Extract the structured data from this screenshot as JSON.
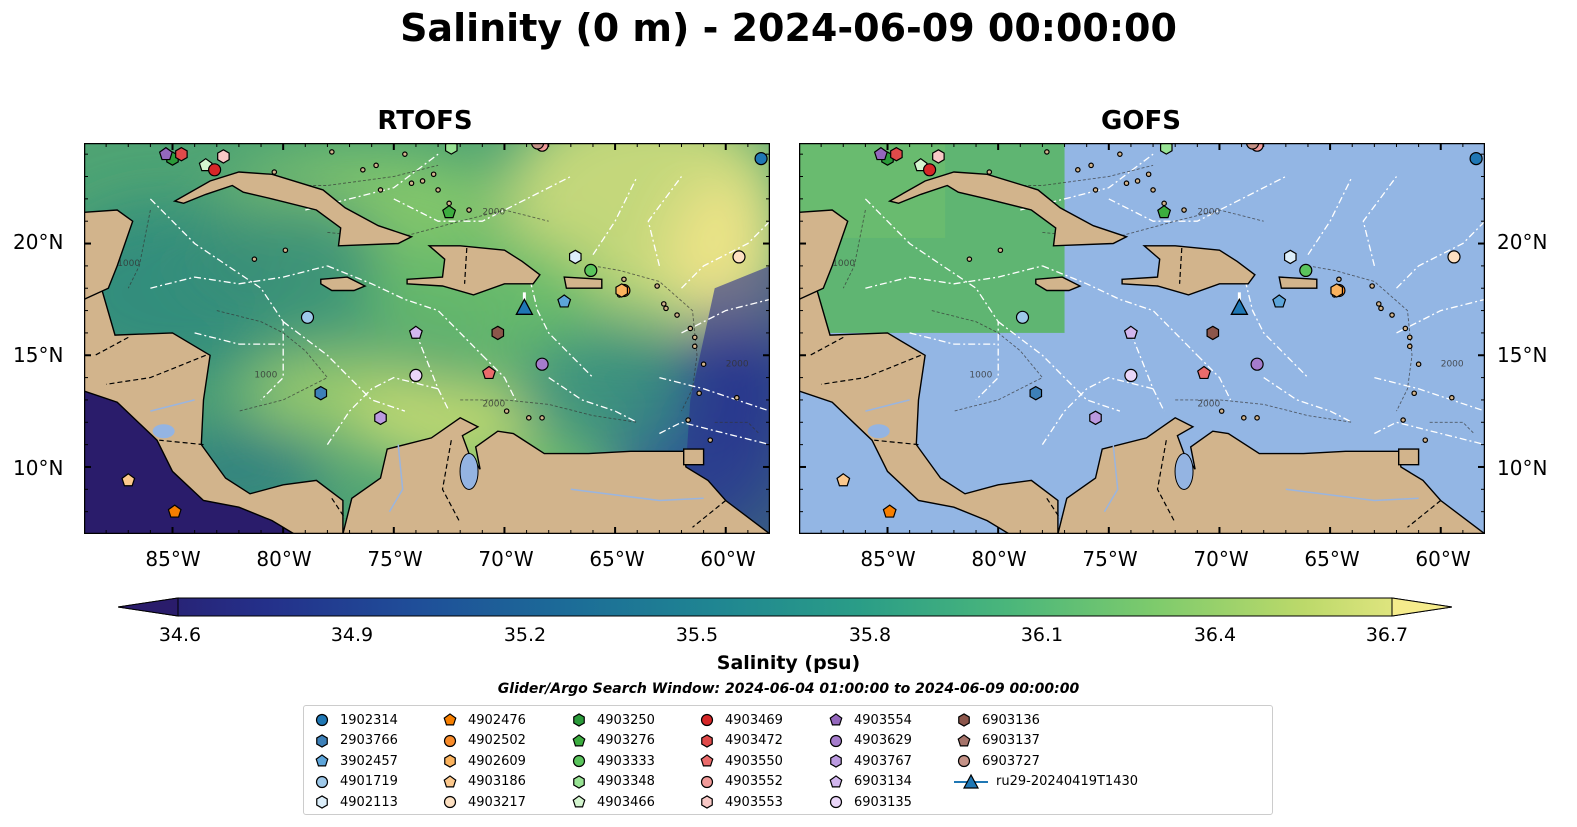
{
  "title": "Salinity (0 m) - 2024-06-09 00:00:00",
  "panels": [
    {
      "title": "RTOFS"
    },
    {
      "title": "GOFS"
    }
  ],
  "lat_labels": [
    "20°N",
    "15°N",
    "10°N"
  ],
  "lon_labels": [
    "85°W",
    "80°W",
    "75°W",
    "70°W",
    "65°W",
    "60°W"
  ],
  "map_extent": {
    "lon_min": -89,
    "lon_max": -58,
    "lat_min": 7,
    "lat_max": 24.5
  },
  "colorbar": {
    "label": "Salinity (psu)",
    "ticks": [
      "34.6",
      "34.9",
      "35.2",
      "35.5",
      "35.8",
      "36.1",
      "36.4",
      "36.7"
    ],
    "colormap": "summer/viridis-like",
    "colors": [
      "#2a1c6b",
      "#24308a",
      "#1f4e99",
      "#1c6b98",
      "#1f8592",
      "#2a9d87",
      "#4ab67b",
      "#7ecb6c",
      "#bcd96a",
      "#f5ec8c"
    ]
  },
  "search_window": "Glider/Argo Search Window: 2024-06-04 01:00:00 to 2024-06-09 00:00:00",
  "map_colors": {
    "land": "#d2b48c",
    "gofs_mask": "#93b6e4",
    "lakes": "#94b4e2"
  },
  "depth_contours": [
    "1000",
    "2000"
  ],
  "legend": [
    {
      "label": "1902314",
      "marker": "circle",
      "color": "#1f77b4"
    },
    {
      "label": "2903766",
      "marker": "hexagon",
      "color": "#3d80b8"
    },
    {
      "label": "3902457",
      "marker": "pentagon",
      "color": "#5da5da"
    },
    {
      "label": "4901719",
      "marker": "circle",
      "color": "#9ec9ea"
    },
    {
      "label": "4902113",
      "marker": "hexagon",
      "color": "#dceefa"
    },
    {
      "label": "4902476",
      "marker": "pentagon",
      "color": "#f77f00"
    },
    {
      "label": "4902502",
      "marker": "circle",
      "color": "#f88b2a"
    },
    {
      "label": "4902609",
      "marker": "hexagon",
      "color": "#fbb35e"
    },
    {
      "label": "4903186",
      "marker": "pentagon",
      "color": "#fcc88c"
    },
    {
      "label": "4903217",
      "marker": "circle",
      "color": "#fde0c2"
    },
    {
      "label": "4903250",
      "marker": "hexagon",
      "color": "#2b9b3a"
    },
    {
      "label": "4903276",
      "marker": "pentagon",
      "color": "#3cad3f"
    },
    {
      "label": "4903333",
      "marker": "circle",
      "color": "#5ac45c"
    },
    {
      "label": "4903348",
      "marker": "hexagon",
      "color": "#98e394"
    },
    {
      "label": "4903466",
      "marker": "pentagon",
      "color": "#d4f5cf"
    },
    {
      "label": "4903469",
      "marker": "circle",
      "color": "#d62728"
    },
    {
      "label": "4903472",
      "marker": "hexagon",
      "color": "#e04a4a"
    },
    {
      "label": "4903550",
      "marker": "pentagon",
      "color": "#ea6b6b"
    },
    {
      "label": "4903552",
      "marker": "circle",
      "color": "#f19a99"
    },
    {
      "label": "4903553",
      "marker": "hexagon",
      "color": "#f8c8c6"
    },
    {
      "label": "4903554",
      "marker": "pentagon",
      "color": "#9467bd"
    },
    {
      "label": "4903629",
      "marker": "circle",
      "color": "#a57ccc"
    },
    {
      "label": "4903767",
      "marker": "hexagon",
      "color": "#bb9ae0"
    },
    {
      "label": "6903134",
      "marker": "pentagon",
      "color": "#d2b6ee"
    },
    {
      "label": "6903135",
      "marker": "circle",
      "color": "#ead6f8"
    },
    {
      "label": "6903136",
      "marker": "hexagon",
      "color": "#8c564b"
    },
    {
      "label": "6903137",
      "marker": "pentagon",
      "color": "#a5736a"
    },
    {
      "label": "6903727",
      "marker": "circle",
      "color": "#c49287"
    },
    {
      "label": "ru29-20240419T1430",
      "marker": "triangle-line",
      "color": "#1f77b4"
    }
  ],
  "float_positions": [
    {
      "id": "1902314",
      "lon": -58.4,
      "lat": 23.8
    },
    {
      "id": "3902457",
      "lon": -67.3,
      "lat": 17.4
    },
    {
      "id": "4901719",
      "lon": -78.9,
      "lat": 16.7
    },
    {
      "id": "4902113",
      "lon": -66.8,
      "lat": 19.4
    },
    {
      "id": "4902476",
      "lon": -84.9,
      "lat": 8.0
    },
    {
      "id": "4903186",
      "lon": -87.0,
      "lat": 9.4
    },
    {
      "id": "4903217",
      "lon": -59.4,
      "lat": 19.4
    },
    {
      "id": "4903250",
      "lon": -85.0,
      "lat": 23.8
    },
    {
      "id": "4903276",
      "lon": -72.5,
      "lat": 21.4
    },
    {
      "id": "4903333",
      "lon": -66.1,
      "lat": 18.8
    },
    {
      "id": "4903348",
      "lon": -72.4,
      "lat": 24.3
    },
    {
      "id": "4903466",
      "lon": -83.5,
      "lat": 23.5
    },
    {
      "id": "4903469",
      "lon": -83.1,
      "lat": 23.3
    },
    {
      "id": "4903472",
      "lon": -84.6,
      "lat": 24.0
    },
    {
      "id": "4903550",
      "lon": -70.7,
      "lat": 14.2
    },
    {
      "id": "4903553",
      "lon": -82.7,
      "lat": 23.9
    },
    {
      "id": "4903554",
      "lon": -85.3,
      "lat": 24.0
    },
    {
      "id": "4903629",
      "lon": -68.3,
      "lat": 14.6
    },
    {
      "id": "2903766",
      "lon": -78.3,
      "lat": 13.3
    },
    {
      "id": "4902502",
      "lon": -64.6,
      "lat": 17.9
    },
    {
      "id": "4902609",
      "lon": -64.7,
      "lat": 17.9
    },
    {
      "id": "4903552",
      "lon": -68.3,
      "lat": 24.4
    },
    {
      "id": "4903767",
      "lon": -75.6,
      "lat": 12.2
    },
    {
      "id": "6903134",
      "lon": -74.0,
      "lat": 16.0
    },
    {
      "id": "6903135",
      "lon": -74.0,
      "lat": 14.1
    },
    {
      "id": "6903136",
      "lon": -70.3,
      "lat": 16.0
    },
    {
      "id": "6903727",
      "lon": -68.5,
      "lat": 24.5
    }
  ],
  "glider": {
    "id": "ru29-20240419T1430",
    "lon": -69.1,
    "lat": 17.1
  }
}
